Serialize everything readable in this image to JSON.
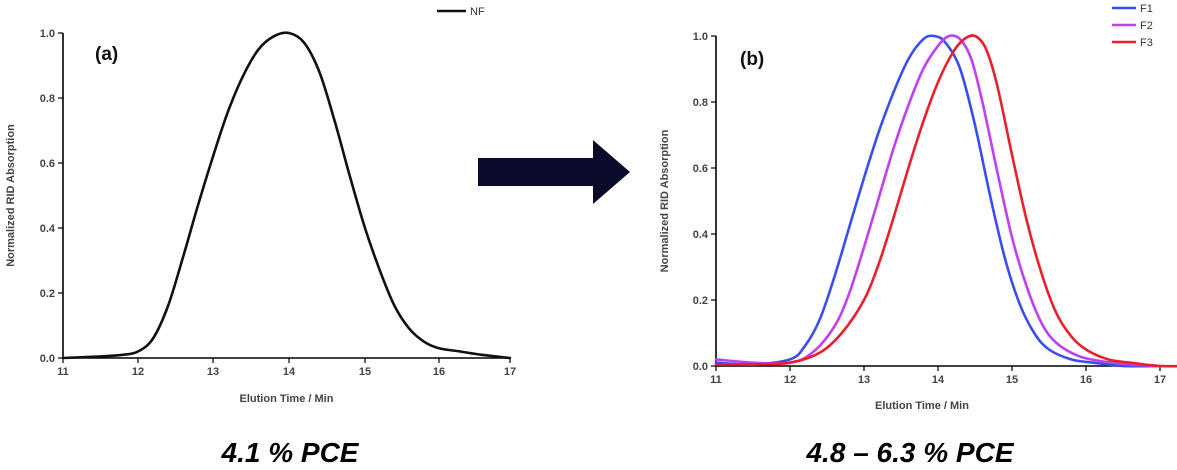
{
  "chart_data": [
    {
      "type": "line",
      "panel_label": "(a)",
      "xlabel": "Elution Time / Min",
      "ylabel": "Normalized RID Absorption",
      "xlim": [
        11,
        17
      ],
      "ylim": [
        0,
        1.0
      ],
      "xticks": [
        "11",
        "12",
        "13",
        "14",
        "15",
        "16",
        "17"
      ],
      "yticks": [
        "0.0",
        "0.2",
        "0.4",
        "0.6",
        "0.8",
        "1.0"
      ],
      "legend_position": "top-right",
      "grid": false,
      "series": [
        {
          "name": "NF",
          "color": "#111111",
          "x": [
            11.0,
            11.5,
            11.8,
            12.0,
            12.2,
            12.4,
            12.6,
            12.8,
            13.0,
            13.2,
            13.4,
            13.6,
            13.8,
            14.0,
            14.2,
            14.4,
            14.6,
            14.8,
            15.0,
            15.2,
            15.4,
            15.6,
            15.8,
            16.0,
            16.3,
            16.6,
            17.0
          ],
          "y": [
            0.0,
            0.005,
            0.01,
            0.02,
            0.06,
            0.16,
            0.31,
            0.47,
            0.62,
            0.76,
            0.87,
            0.95,
            0.99,
            1.0,
            0.97,
            0.88,
            0.73,
            0.56,
            0.4,
            0.27,
            0.16,
            0.09,
            0.05,
            0.03,
            0.02,
            0.01,
            0.0
          ]
        }
      ]
    },
    {
      "type": "line",
      "panel_label": "(b)",
      "xlabel": "Elution Time / Min",
      "ylabel": "Normalized RID Absorption",
      "xlim": [
        11,
        17.5
      ],
      "ylim": [
        0,
        1.0
      ],
      "xticks": [
        "11",
        "12",
        "13",
        "14",
        "15",
        "16",
        "17"
      ],
      "yticks": [
        "0.0",
        "0.2",
        "0.4",
        "0.6",
        "0.8",
        "1.0"
      ],
      "legend_position": "top-right",
      "grid": false,
      "series": [
        {
          "name": "F1",
          "color": "#3b4df0",
          "x": [
            11.0,
            11.5,
            12.0,
            12.2,
            12.4,
            12.6,
            12.8,
            13.0,
            13.2,
            13.4,
            13.6,
            13.8,
            13.95,
            14.1,
            14.3,
            14.5,
            14.7,
            14.9,
            15.1,
            15.3,
            15.5,
            15.8,
            16.1,
            16.5,
            17.0
          ],
          "y": [
            0.01,
            0.005,
            0.02,
            0.06,
            0.14,
            0.27,
            0.42,
            0.57,
            0.71,
            0.83,
            0.93,
            0.99,
            1.0,
            0.98,
            0.9,
            0.73,
            0.52,
            0.33,
            0.19,
            0.1,
            0.05,
            0.02,
            0.01,
            0.0,
            0.0
          ]
        },
        {
          "name": "F2",
          "color": "#c040f0",
          "x": [
            11.0,
            11.5,
            12.0,
            12.3,
            12.6,
            12.8,
            13.0,
            13.2,
            13.4,
            13.6,
            13.8,
            14.0,
            14.15,
            14.3,
            14.45,
            14.6,
            14.8,
            15.0,
            15.2,
            15.4,
            15.6,
            15.9,
            16.2,
            16.6,
            17.0,
            17.5
          ],
          "y": [
            0.02,
            0.01,
            0.01,
            0.04,
            0.12,
            0.22,
            0.36,
            0.51,
            0.66,
            0.79,
            0.9,
            0.97,
            1.0,
            0.99,
            0.93,
            0.8,
            0.59,
            0.39,
            0.24,
            0.13,
            0.07,
            0.03,
            0.015,
            0.005,
            0.0,
            0.0
          ]
        },
        {
          "name": "F3",
          "color": "#e8202a",
          "x": [
            11.0,
            11.5,
            12.0,
            12.4,
            12.7,
            13.0,
            13.2,
            13.4,
            13.6,
            13.8,
            14.0,
            14.2,
            14.35,
            14.5,
            14.65,
            14.8,
            15.0,
            15.2,
            15.4,
            15.6,
            15.8,
            16.0,
            16.3,
            16.6,
            17.0,
            17.5
          ],
          "y": [
            0.005,
            0.005,
            0.01,
            0.04,
            0.1,
            0.2,
            0.31,
            0.45,
            0.6,
            0.74,
            0.86,
            0.95,
            0.99,
            1.0,
            0.96,
            0.85,
            0.64,
            0.44,
            0.28,
            0.16,
            0.09,
            0.05,
            0.02,
            0.01,
            0.0,
            0.0
          ]
        }
      ]
    }
  ],
  "captions": {
    "left": "4.1 % PCE",
    "right": "4.8 – 6.3 % PCE"
  },
  "arrow": {
    "color": "#0a0a2a"
  }
}
